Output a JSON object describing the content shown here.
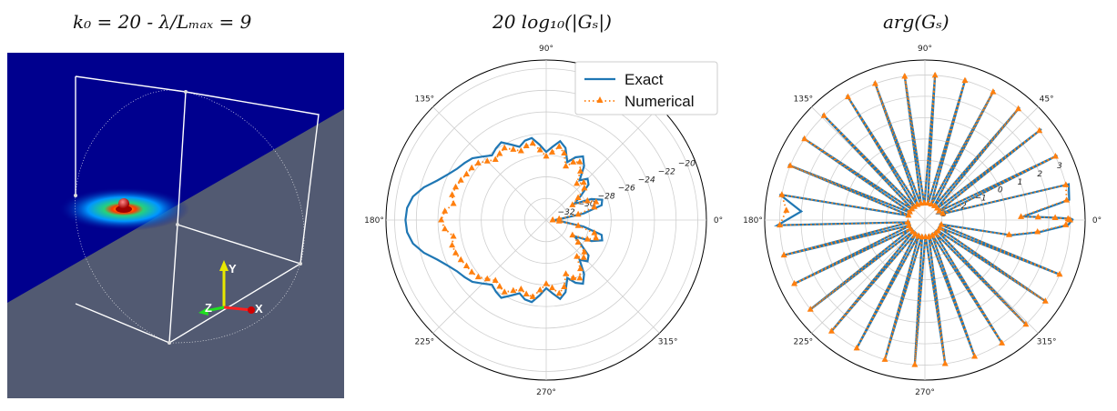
{
  "titles": {
    "scene": "k₀ = 20 - λ/Lₘₐₓ = 9",
    "magnitude": "20 log₁₀(|Gₛ|)",
    "phase": "arg(Gₛ)"
  },
  "scene": {
    "axis_labels": [
      "Y",
      "Z",
      "X"
    ],
    "colors": {
      "background": "#525a72",
      "plane": "#00008e",
      "wire": "#ffffff",
      "source": "#d01010"
    }
  },
  "chart_data": [
    {
      "type": "polar-line",
      "title": "20 log₁₀(|Gₛ|)",
      "angle_ticks": [
        "0°",
        "45°",
        "90°",
        "135°",
        "180°",
        "225°",
        "270°",
        "315°"
      ],
      "radial_ticks": [
        -32,
        -30,
        -28,
        -26,
        -24,
        -22,
        -20
      ],
      "rlim": [
        -34,
        -19.2
      ],
      "legend": {
        "position": "top-right",
        "entries": [
          "Exact",
          "Numerical"
        ]
      },
      "series": [
        {
          "name": "Exact",
          "color": "#1f77b4",
          "style": "solid",
          "theta_deg": [
            0,
            5,
            10,
            15,
            20,
            25,
            30,
            35,
            40,
            45,
            50,
            55,
            60,
            65,
            70,
            75,
            80,
            85,
            90,
            95,
            100,
            105,
            110,
            115,
            120,
            125,
            130,
            135,
            140,
            145,
            150,
            155,
            160,
            165,
            170,
            175,
            180,
            185,
            190,
            195,
            200,
            205,
            210,
            215,
            220,
            225,
            230,
            235,
            240,
            245,
            250,
            255,
            260,
            265,
            270,
            275,
            280,
            285,
            290,
            295,
            300,
            305,
            310,
            315,
            320,
            325,
            330,
            335,
            340,
            345,
            350,
            355,
            360
          ],
          "r": [
            -33.2,
            -32.6,
            -30.5,
            -28.7,
            -28.5,
            -29.4,
            -31.0,
            -30.1,
            -28.9,
            -28.6,
            -29.2,
            -27.9,
            -27.2,
            -27.6,
            -28.3,
            -27.1,
            -26.6,
            -27.2,
            -27.7,
            -27.0,
            -26.3,
            -26.4,
            -26.8,
            -26.3,
            -25.7,
            -25.9,
            -26.2,
            -25.7,
            -25.1,
            -24.8,
            -24.5,
            -24.0,
            -23.3,
            -22.3,
            -21.5,
            -21.1,
            -21.0,
            -21.1,
            -21.5,
            -22.3,
            -23.3,
            -24.0,
            -24.5,
            -24.8,
            -25.1,
            -25.7,
            -26.2,
            -25.9,
            -25.7,
            -26.3,
            -26.8,
            -26.4,
            -26.3,
            -27.0,
            -27.7,
            -27.2,
            -26.6,
            -27.1,
            -28.3,
            -27.6,
            -27.2,
            -27.9,
            -29.2,
            -28.6,
            -28.9,
            -30.1,
            -31.0,
            -29.4,
            -28.5,
            -28.7,
            -30.5,
            -32.6,
            -33.2
          ]
        },
        {
          "name": "Numerical",
          "color": "#ff7f0e",
          "style": "dotted-triangle",
          "theta_deg": [
            0,
            5,
            10,
            15,
            20,
            25,
            30,
            35,
            40,
            45,
            50,
            55,
            60,
            65,
            70,
            75,
            80,
            85,
            90,
            95,
            100,
            105,
            110,
            115,
            120,
            125,
            130,
            135,
            140,
            145,
            150,
            155,
            160,
            165,
            170,
            175,
            180,
            185,
            190,
            195,
            200,
            205,
            210,
            215,
            220,
            225,
            230,
            235,
            240,
            245,
            250,
            255,
            260,
            265,
            270,
            275,
            280,
            285,
            290,
            295,
            300,
            305,
            310,
            315,
            320,
            325,
            330,
            335,
            340,
            345,
            350,
            355,
            360
          ],
          "r": [
            -33.4,
            -32.8,
            -31.0,
            -29.4,
            -29.1,
            -29.8,
            -31.2,
            -30.4,
            -29.4,
            -29.1,
            -29.6,
            -28.5,
            -27.8,
            -28.1,
            -28.7,
            -27.6,
            -27.1,
            -27.7,
            -28.1,
            -27.5,
            -26.8,
            -26.9,
            -27.2,
            -26.8,
            -26.3,
            -26.5,
            -26.7,
            -26.3,
            -25.8,
            -25.6,
            -25.5,
            -25.3,
            -25.1,
            -25.0,
            -25.3,
            -24.6,
            -24.3,
            -24.6,
            -25.3,
            -25.0,
            -25.1,
            -25.3,
            -25.5,
            -25.6,
            -25.8,
            -26.3,
            -26.7,
            -26.5,
            -26.3,
            -26.8,
            -27.2,
            -26.9,
            -26.8,
            -27.5,
            -28.1,
            -27.7,
            -27.1,
            -27.6,
            -28.7,
            -28.1,
            -27.8,
            -28.5,
            -29.6,
            -29.1,
            -29.4,
            -30.4,
            -31.2,
            -29.8,
            -29.1,
            -29.4,
            -31.0,
            -32.8,
            -33.4
          ]
        }
      ]
    },
    {
      "type": "polar-line",
      "title": "arg(Gₛ)",
      "angle_ticks": [
        "0°",
        "45°",
        "90°",
        "135°",
        "180°",
        "225°",
        "270°",
        "315°"
      ],
      "radial_ticks": [
        -3,
        -2,
        -1,
        0,
        1,
        2,
        3
      ],
      "rlim": [
        -3.8,
        3.7
      ],
      "series": [
        {
          "name": "Exact",
          "color": "#1f77b4",
          "style": "solid",
          "theta_deg": [
            0,
            0.5,
            1,
            1.5,
            2,
            8,
            14,
            20,
            26,
            32,
            38,
            44,
            50,
            56,
            62,
            68,
            74,
            80,
            86,
            92,
            98,
            104,
            110,
            116,
            122,
            128,
            134,
            140,
            146,
            152,
            158,
            164,
            170,
            176,
            182,
            188,
            194,
            200,
            206,
            212,
            218,
            224,
            230,
            236,
            242,
            248,
            254,
            260,
            266,
            272,
            278,
            284,
            290,
            296,
            302,
            308,
            314,
            320,
            326,
            332,
            338,
            344,
            350,
            354,
            358,
            360
          ],
          "r": [
            3.15,
            3.05,
            2.4,
            1.6,
            0.8,
            3.02,
            3.14,
            -3.0,
            3.1,
            -3.1,
            3.12,
            -3.1,
            3.1,
            -3.1,
            3.1,
            -3.1,
            3.1,
            -3.1,
            3.1,
            -3.1,
            3.1,
            -3.1,
            3.1,
            -3.1,
            3.1,
            -3.1,
            3.1,
            -3.1,
            3.1,
            -3.1,
            3.1,
            -3.1,
            3.1,
            2.0,
            3.1,
            -3.1,
            3.1,
            -3.1,
            3.1,
            -3.1,
            3.1,
            -3.1,
            3.1,
            -3.1,
            3.1,
            -3.1,
            3.1,
            -3.1,
            3.1,
            -3.1,
            3.1,
            -3.1,
            3.1,
            -3.1,
            3.1,
            -3.1,
            3.1,
            -3.1,
            3.1,
            -3.1,
            3.1,
            -3.1,
            0.3,
            1.6,
            2.9,
            3.1
          ]
        },
        {
          "name": "Numerical",
          "color": "#ff7f0e",
          "style": "dotted-triangle",
          "theta_deg": [
            0,
            0.5,
            1,
            1.5,
            2,
            8,
            14,
            20,
            26,
            32,
            38,
            44,
            50,
            56,
            62,
            68,
            74,
            80,
            86,
            92,
            98,
            104,
            110,
            116,
            122,
            128,
            134,
            140,
            146,
            152,
            158,
            164,
            170,
            176,
            182,
            188,
            194,
            200,
            206,
            212,
            218,
            224,
            230,
            236,
            242,
            248,
            254,
            260,
            266,
            272,
            278,
            284,
            290,
            296,
            302,
            308,
            314,
            320,
            326,
            332,
            338,
            344,
            350,
            354,
            358,
            360
          ],
          "r": [
            2.95,
            2.9,
            2.3,
            1.5,
            0.7,
            2.9,
            3.0,
            -2.9,
            3.0,
            -3.0,
            3.0,
            -3.0,
            3.0,
            -3.0,
            3.0,
            -3.0,
            3.0,
            -3.0,
            3.0,
            -3.0,
            3.0,
            -3.0,
            3.0,
            -3.0,
            3.0,
            -3.0,
            3.0,
            -3.0,
            3.0,
            -3.0,
            3.0,
            -3.0,
            3.0,
            2.7,
            3.0,
            -3.0,
            3.0,
            -3.0,
            3.0,
            -3.0,
            3.0,
            -3.0,
            3.0,
            -3.0,
            3.0,
            -3.0,
            3.0,
            -3.0,
            3.0,
            -3.0,
            3.0,
            -3.0,
            3.0,
            -3.0,
            3.0,
            -3.0,
            3.0,
            -3.0,
            3.0,
            -3.0,
            3.0,
            -3.0,
            0.2,
            1.5,
            2.8,
            3.0
          ]
        }
      ]
    }
  ]
}
